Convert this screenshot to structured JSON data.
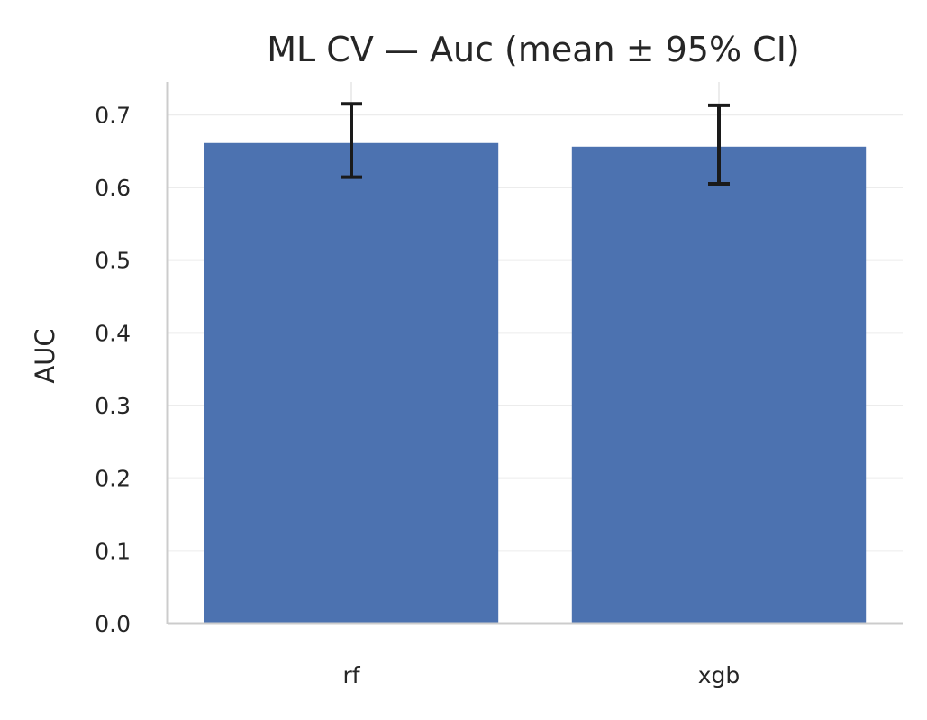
{
  "chart_data": {
    "type": "bar",
    "title": "ML CV — Auc (mean ± 95% CI)",
    "xlabel": "",
    "ylabel": "AUC",
    "categories": [
      "rf",
      "xgb"
    ],
    "values": [
      0.661,
      0.656
    ],
    "ci_lower": [
      0.614,
      0.605
    ],
    "ci_upper": [
      0.715,
      0.713
    ],
    "ylim": [
      0,
      0.745
    ],
    "yticks": [
      0.0,
      0.1,
      0.2,
      0.3,
      0.4,
      0.5,
      0.6,
      0.7
    ],
    "ytick_labels": [
      "0.0",
      "0.1",
      "0.2",
      "0.3",
      "0.4",
      "0.5",
      "0.6",
      "0.7"
    ],
    "bar_color": "#4c72b0",
    "grid": true,
    "legend": "none"
  }
}
